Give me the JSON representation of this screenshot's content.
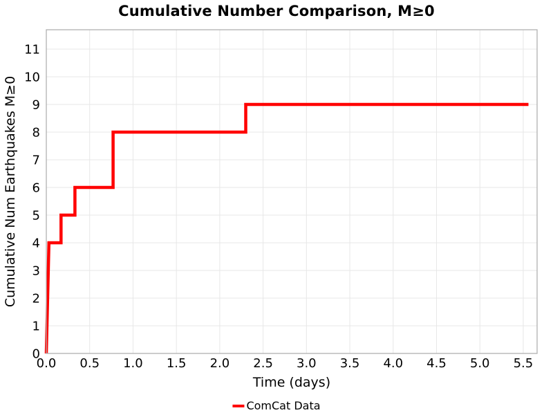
{
  "chart_data": {
    "type": "line",
    "subtype": "step-cumulative",
    "title": "Cumulative Number Comparison, M≥0",
    "xlabel": "Time (days)",
    "ylabel": "Cumulative Num Earthquakes M≥0",
    "xlim": [
      0,
      5.66
    ],
    "ylim": [
      0,
      11.7
    ],
    "xticks": [
      0,
      0.5,
      1.0,
      1.5,
      2.0,
      2.5,
      3.0,
      3.5,
      4.0,
      4.5,
      5.0,
      5.5
    ],
    "xtick_labels": [
      "0.0",
      "0.5",
      "1.0",
      "1.5",
      "2.0",
      "2.5",
      "3.0",
      "3.5",
      "4.0",
      "4.5",
      "5.0",
      "5.5"
    ],
    "yticks": [
      0,
      1,
      2,
      3,
      4,
      5,
      6,
      7,
      8,
      9,
      10,
      11
    ],
    "ytick_labels": [
      "0",
      "1",
      "2",
      "3",
      "4",
      "5",
      "6",
      "7",
      "8",
      "9",
      "10",
      "11"
    ],
    "grid": true,
    "grid_color": "#e7e7e7",
    "frame_color": "#b0b0b0",
    "legend_position": "bottom-center",
    "series": [
      {
        "name": "ComCat Data",
        "color": "#ff0000",
        "line_width": 4.5,
        "points": [
          [
            0.0,
            0
          ],
          [
            0.03,
            4
          ],
          [
            0.17,
            4
          ],
          [
            0.17,
            5
          ],
          [
            0.33,
            5
          ],
          [
            0.33,
            6
          ],
          [
            0.77,
            6
          ],
          [
            0.77,
            8
          ],
          [
            2.3,
            8
          ],
          [
            2.3,
            9
          ],
          [
            5.56,
            9
          ]
        ]
      }
    ]
  }
}
